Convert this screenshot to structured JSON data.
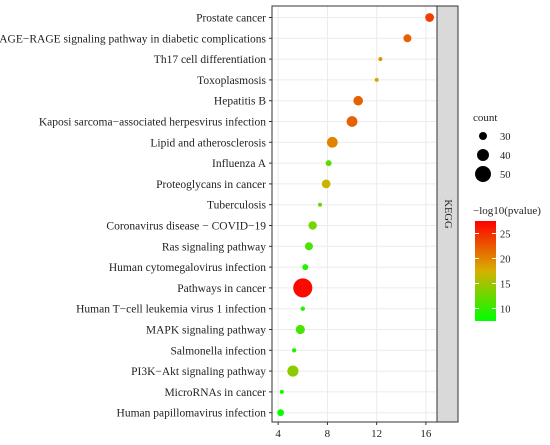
{
  "chart_data": {
    "type": "scatter",
    "title": "",
    "xlabel": "",
    "ylabel": "",
    "xlim": [
      3.5,
      16.9
    ],
    "x_ticks": [
      4,
      8,
      12,
      16
    ],
    "facet_label": "KEGG",
    "grid": true,
    "legend_position": "right",
    "points": [
      {
        "pathway": "Prostate cancer",
        "x": 16.3,
        "count": 32,
        "neglog10p": 24
      },
      {
        "pathway": "AGE−RAGE signaling pathway in diabetic complications",
        "x": 14.5,
        "count": 30,
        "neglog10p": 22
      },
      {
        "pathway": "Th17 cell differentiation",
        "x": 12.3,
        "count": 20,
        "neglog10p": 19
      },
      {
        "pathway": "Toxoplasmosis",
        "x": 12.0,
        "count": 20,
        "neglog10p": 18
      },
      {
        "pathway": "Hepatitis B",
        "x": 10.5,
        "count": 34,
        "neglog10p": 22
      },
      {
        "pathway": "Kaposi sarcoma−associated herpesvirus infection",
        "x": 10.0,
        "count": 37,
        "neglog10p": 22
      },
      {
        "pathway": "Lipid and atherosclerosis",
        "x": 8.4,
        "count": 37,
        "neglog10p": 20
      },
      {
        "pathway": "Influenza A",
        "x": 8.1,
        "count": 25,
        "neglog10p": 12
      },
      {
        "pathway": "Proteoglycans in cancer",
        "x": 7.9,
        "count": 32,
        "neglog10p": 17
      },
      {
        "pathway": "Tuberculosis",
        "x": 7.4,
        "count": 20,
        "neglog10p": 12
      },
      {
        "pathway": "Coronavirus disease − COVID−19",
        "x": 6.8,
        "count": 31,
        "neglog10p": 13
      },
      {
        "pathway": "Ras signaling pathway",
        "x": 6.5,
        "count": 30,
        "neglog10p": 11
      },
      {
        "pathway": "Human cytomegalovirus infection",
        "x": 6.2,
        "count": 25,
        "neglog10p": 9
      },
      {
        "pathway": "Pathways in cancer",
        "x": 6.0,
        "count": 58,
        "neglog10p": 27
      },
      {
        "pathway": "Human T−cell leukemia virus 1 infection",
        "x": 6.0,
        "count": 21,
        "neglog10p": 9
      },
      {
        "pathway": "MAPK signaling pathway",
        "x": 5.8,
        "count": 33,
        "neglog10p": 11
      },
      {
        "pathway": "Salmonella infection",
        "x": 5.3,
        "count": 21,
        "neglog10p": 9
      },
      {
        "pathway": "PI3K−Akt signaling pathway",
        "x": 5.2,
        "count": 38,
        "neglog10p": 14
      },
      {
        "pathway": "MicroRNAs in cancer",
        "x": 4.3,
        "count": 20,
        "neglog10p": 8
      },
      {
        "pathway": "Human papillomavirus infection",
        "x": 4.2,
        "count": 27,
        "neglog10p": 8
      }
    ],
    "size_legend": {
      "title": "count",
      "values": [
        30,
        40,
        50
      ],
      "labels": [
        "30",
        "40",
        "50"
      ]
    },
    "color_legend": {
      "title": "−log10(pvalue)",
      "min": 7.5,
      "max": 27.5,
      "ticks": [
        10,
        15,
        20,
        25
      ],
      "labels": [
        "10",
        "15",
        "20",
        "25"
      ],
      "low_color": "#00ff00",
      "mid_color": "#d6b000",
      "high_color": "#ff0000"
    },
    "colors": {
      "panel_bg": "#ffffff",
      "grid": "#ebebeb",
      "strip_bg": "#d9d9d9",
      "border": "#333333"
    }
  }
}
